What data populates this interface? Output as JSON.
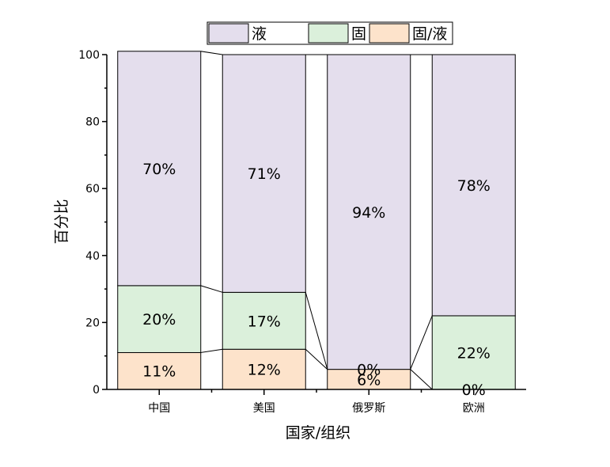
{
  "chart_data": {
    "type": "bar",
    "stacked": true,
    "categories": [
      "中国",
      "美国",
      "俄罗斯",
      "欧洲"
    ],
    "series": [
      {
        "name": "固/液",
        "values": [
          11,
          12,
          6,
          0
        ],
        "labels": [
          "11%",
          "12%",
          "6%",
          "0%"
        ],
        "color": "#fde3cb"
      },
      {
        "name": "固",
        "values": [
          20,
          17,
          0,
          22
        ],
        "labels": [
          "20%",
          "17%",
          "0%",
          "22%"
        ],
        "color": "#dbf0db"
      },
      {
        "name": "液",
        "values": [
          70,
          71,
          94,
          78
        ],
        "labels": [
          "70%",
          "71%",
          "94%",
          "78%"
        ],
        "color": "#e4deed"
      }
    ],
    "legend_order": [
      "液",
      "固",
      "固/液"
    ],
    "legend_position": "top-center",
    "xlabel": "国家/组织",
    "ylabel": "百分比",
    "ylim": [
      0,
      100
    ],
    "yticks": [
      0,
      20,
      40,
      60,
      80,
      100
    ],
    "connector_lines": true,
    "grid": false
  }
}
